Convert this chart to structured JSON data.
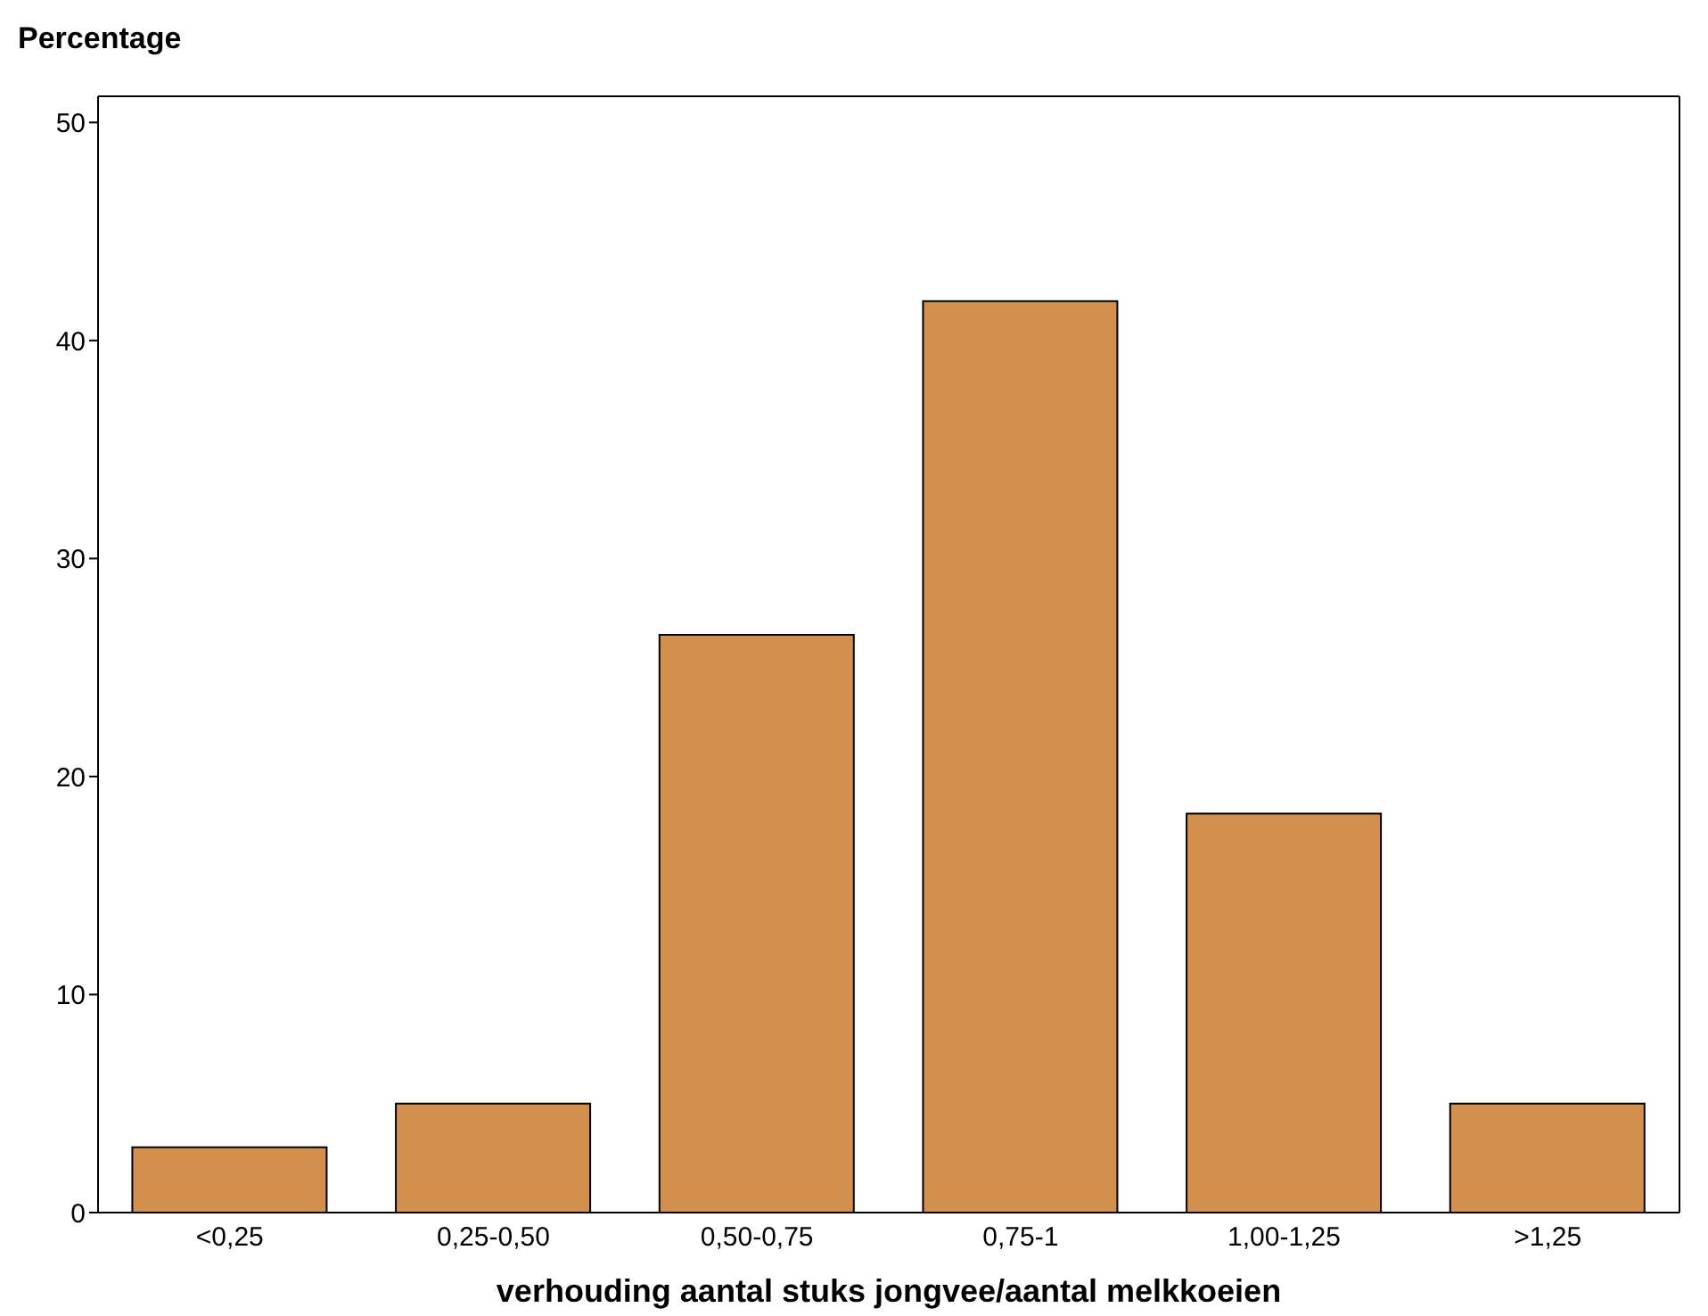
{
  "chart_data": {
    "type": "bar",
    "ylabel": "Percentage",
    "xlabel": "verhouding aantal stuks jongvee/aantal melkkoeien",
    "categories": [
      "<0,25",
      "0,25-0,50",
      "0,50-0,75",
      "0,75-1",
      "1,00-1,25",
      ">1,25"
    ],
    "values": [
      3,
      5,
      26.5,
      41.8,
      18.3,
      5
    ],
    "color": "#d38f4e",
    "ylim": [
      0,
      51.2
    ],
    "yticks": [
      0,
      10,
      20,
      30,
      40,
      50
    ],
    "grid": false,
    "legend": false
  }
}
